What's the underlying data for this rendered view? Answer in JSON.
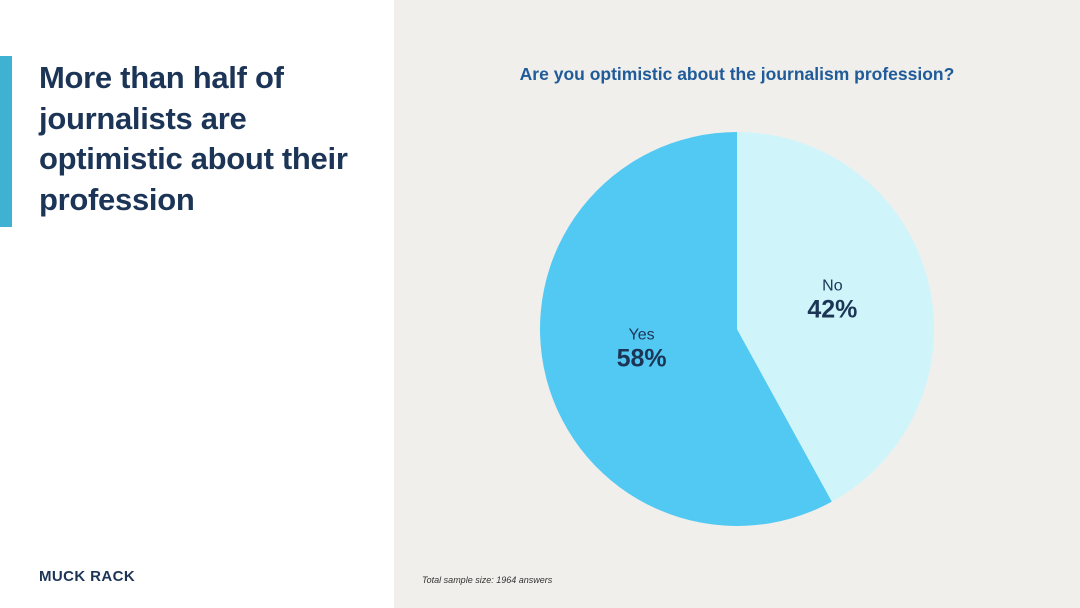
{
  "headline": "More than half of journalists are optimistic about their profession",
  "brand": "MUCK RACK",
  "colors": {
    "navy": "#1c3557",
    "accent": "#3fb2d3",
    "title_blue": "#1f5a99",
    "panel_bg": "#f0efec"
  },
  "chart_data": {
    "type": "pie",
    "title": "Are you optimistic about the journalism profession?",
    "slices": [
      {
        "label": "Yes",
        "value": 58,
        "display": "58%",
        "color": "#52c9f2"
      },
      {
        "label": "No",
        "value": 42,
        "display": "42%",
        "color": "#cff5fb"
      }
    ],
    "footnote": "Total sample size: 1964 answers"
  }
}
